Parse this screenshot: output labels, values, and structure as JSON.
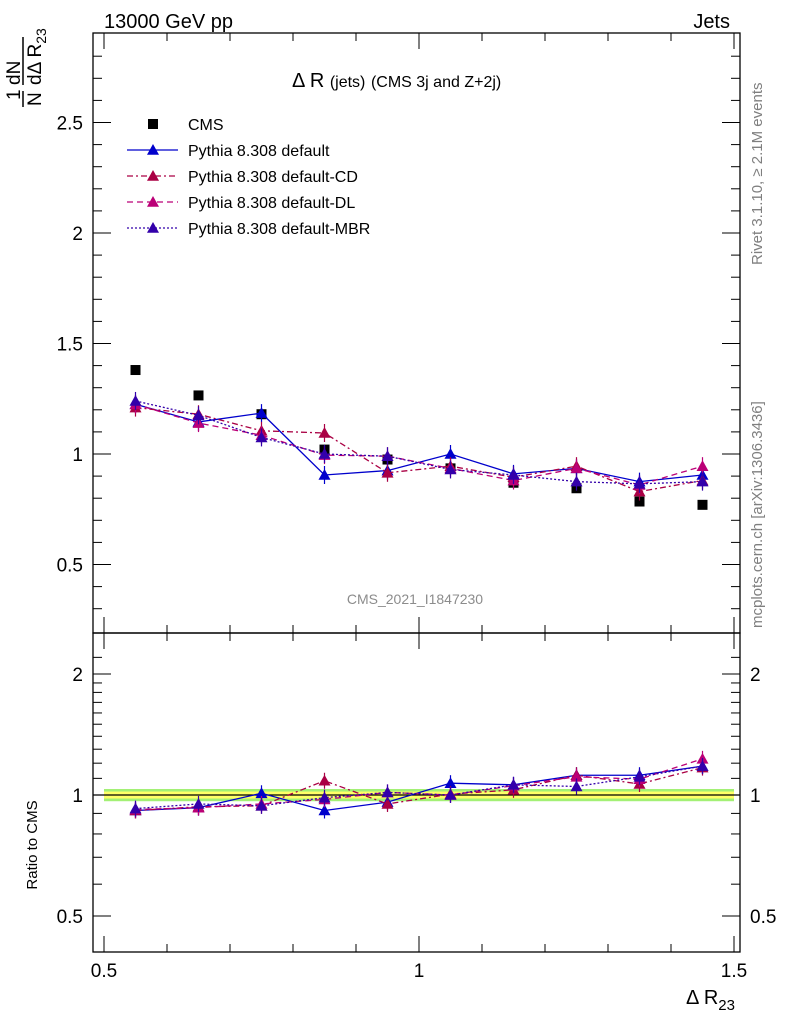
{
  "header": {
    "left": "13000 GeV pp",
    "right": "Jets"
  },
  "side_labels": {
    "rivet": "Rivet 3.1.10, ≥ 2.1M events",
    "mcplots": "mcplots.cern.ch [arXiv:1306.3436]"
  },
  "analysis_id": "CMS_2021_I1847230",
  "colors": {
    "cms": "#000000",
    "default": "#0000cc",
    "default_cd": "#aa0044",
    "default_dl": "#bb0077",
    "default_mbr": "#3300aa",
    "band_inner": "#ffff66",
    "band_outer": "#99ee66"
  },
  "chart_data": [
    {
      "type": "scatter",
      "panel": "main",
      "title": "Δ R (jets) (CMS 3j and Z+2j)",
      "title_main": "Δ R",
      "title_small": "(jets)",
      "title_rest": "(CMS 3j and Z+2j)",
      "ylabel": "1/N dN/dΔ R23",
      "ylabel_parts": {
        "one": "1",
        "dN": "dN",
        "N": "N",
        "d": "dΔ R",
        "sub": "23"
      },
      "xlabel": "Δ R23",
      "xlabel_parts": {
        "main": "Δ R",
        "sub": "23"
      },
      "xlim": [
        0.5,
        1.5
      ],
      "ylim": [
        0.2,
        2.9
      ],
      "x_ticks": [
        "0.5",
        "1",
        "1.5"
      ],
      "y_ticks": [
        {
          "v": 0.5,
          "label": "0.5"
        },
        {
          "v": 1,
          "label": "1"
        },
        {
          "v": 1.5,
          "label": "1.5"
        },
        {
          "v": 2,
          "label": "2"
        },
        {
          "v": 2.5,
          "label": "2.5"
        }
      ],
      "x": [
        0.55,
        0.65,
        0.75,
        0.85,
        0.95,
        1.05,
        1.15,
        1.25,
        1.35,
        1.45
      ],
      "series": [
        {
          "name": "CMS",
          "key": "cms",
          "marker": "square",
          "values": [
            1.38,
            1.265,
            1.18,
            1.02,
            0.975,
            0.935,
            0.87,
            0.845,
            0.785,
            0.77
          ]
        },
        {
          "name": "Pythia 8.308 default",
          "key": "default",
          "dash": "",
          "marker": "triangle",
          "values": [
            1.225,
            1.145,
            1.185,
            0.905,
            0.925,
            1.0,
            0.91,
            0.935,
            0.875,
            0.905
          ]
        },
        {
          "name": "Pythia 8.308 default-CD",
          "key": "default_cd",
          "dash": "6,3,2,3",
          "marker": "triangle",
          "values": [
            1.21,
            1.18,
            1.105,
            1.095,
            0.915,
            0.945,
            0.895,
            0.945,
            0.83,
            0.88
          ]
        },
        {
          "name": "Pythia 8.308 default-DL",
          "key": "default_dl",
          "dash": "6,4",
          "marker": "triangle",
          "values": [
            1.225,
            1.14,
            1.085,
            0.995,
            0.99,
            0.935,
            0.88,
            0.935,
            0.86,
            0.945
          ]
        },
        {
          "name": "Pythia 8.308 default-MBR",
          "key": "default_mbr",
          "dash": "2,2",
          "marker": "triangle",
          "values": [
            1.24,
            1.175,
            1.075,
            1.0,
            0.99,
            0.93,
            0.905,
            0.875,
            0.865,
            0.875
          ]
        }
      ]
    },
    {
      "type": "scatter",
      "panel": "ratio",
      "ylabel": "Ratio to CMS",
      "ylim": [
        0.4,
        2.3
      ],
      "y_ticks": [
        {
          "v": 0.5,
          "label": "0.5"
        },
        {
          "v": 1,
          "label": "1"
        },
        {
          "v": 2,
          "label": "2"
        }
      ],
      "reference": 1,
      "x": [
        0.55,
        0.65,
        0.75,
        0.85,
        0.95,
        1.05,
        1.15,
        1.25,
        1.35,
        1.45
      ],
      "series": [
        {
          "key": "default",
          "values": [
            0.915,
            0.93,
            1.01,
            0.915,
            0.96,
            1.07,
            1.06,
            1.12,
            1.12,
            1.18
          ]
        },
        {
          "key": "default_cd",
          "values": [
            0.915,
            0.935,
            0.94,
            1.085,
            0.95,
            1.005,
            1.03,
            1.12,
            1.065,
            1.17
          ]
        },
        {
          "key": "default_dl",
          "values": [
            0.92,
            0.93,
            0.95,
            0.975,
            1.015,
            1.0,
            1.055,
            1.11,
            1.095,
            1.23
          ]
        },
        {
          "key": "default_mbr",
          "values": [
            0.925,
            0.95,
            0.94,
            0.985,
            1.015,
            1.0,
            1.06,
            1.05,
            1.11,
            1.18
          ]
        }
      ]
    }
  ]
}
